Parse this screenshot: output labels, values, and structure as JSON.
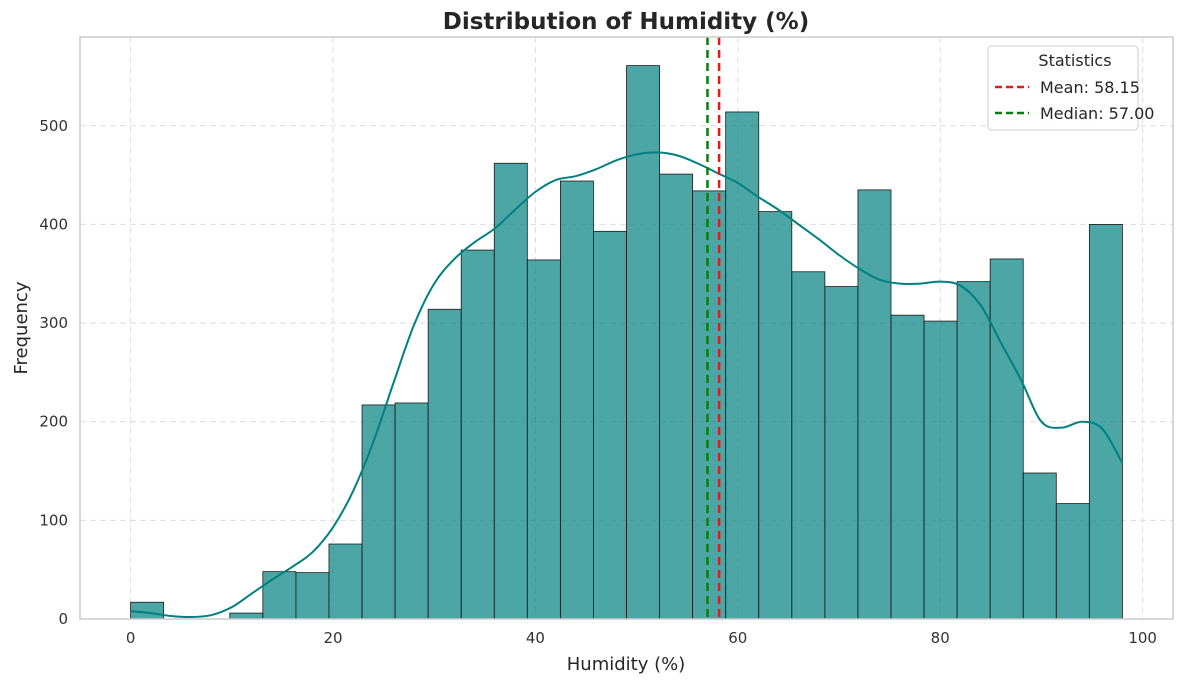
{
  "chart_data": {
    "type": "histogram",
    "title": "Distribution of Humidity (%)",
    "xlabel": "Humidity (%)",
    "ylabel": "Frequency",
    "xlim": [
      -5,
      103
    ],
    "ylim": [
      0,
      590
    ],
    "xticks": [
      0,
      20,
      40,
      60,
      80,
      100
    ],
    "yticks": [
      0,
      100,
      200,
      300,
      400,
      500
    ],
    "grid": true,
    "grid_style": "dashed",
    "bar_color": "#008080",
    "bar_edge_color": "#1a1a1a",
    "bins": {
      "start": 0,
      "width": 3.2667,
      "counts": [
        17,
        0,
        0,
        6,
        48,
        47,
        76,
        217,
        219,
        314,
        374,
        462,
        364,
        444,
        393,
        561,
        451,
        434,
        514,
        413,
        352,
        337,
        435,
        308,
        302,
        342,
        365,
        148,
        117,
        400
      ]
    },
    "kde": {
      "color": "#008080",
      "x": [
        0,
        2,
        4,
        6,
        8,
        10,
        12,
        14,
        16,
        18,
        20,
        22,
        24,
        26,
        28,
        30,
        32,
        34,
        36,
        38,
        40,
        42,
        44,
        46,
        48,
        50,
        52,
        54,
        56,
        58,
        60,
        62,
        64,
        66,
        68,
        70,
        72,
        74,
        76,
        78,
        80,
        82,
        84,
        86,
        88,
        90,
        92,
        94,
        96,
        98
      ],
      "y": [
        8,
        6,
        3,
        2,
        4,
        12,
        26,
        40,
        53,
        68,
        93,
        130,
        180,
        240,
        298,
        340,
        365,
        382,
        396,
        415,
        433,
        445,
        449,
        456,
        465,
        471,
        473,
        470,
        462,
        452,
        442,
        428,
        415,
        400,
        385,
        369,
        355,
        344,
        340,
        340,
        342,
        338,
        318,
        280,
        242,
        200,
        194,
        200,
        193,
        158
      ]
    },
    "lines": [
      {
        "name": "Mean: 58.15",
        "x": 58.15,
        "color": "#e31a1c",
        "style": "dashed"
      },
      {
        "name": "Median: 57.00",
        "x": 57.0,
        "color": "#0a7d0a",
        "style": "dashed"
      }
    ],
    "legend": {
      "title": "Statistics",
      "position": "top-right"
    }
  }
}
